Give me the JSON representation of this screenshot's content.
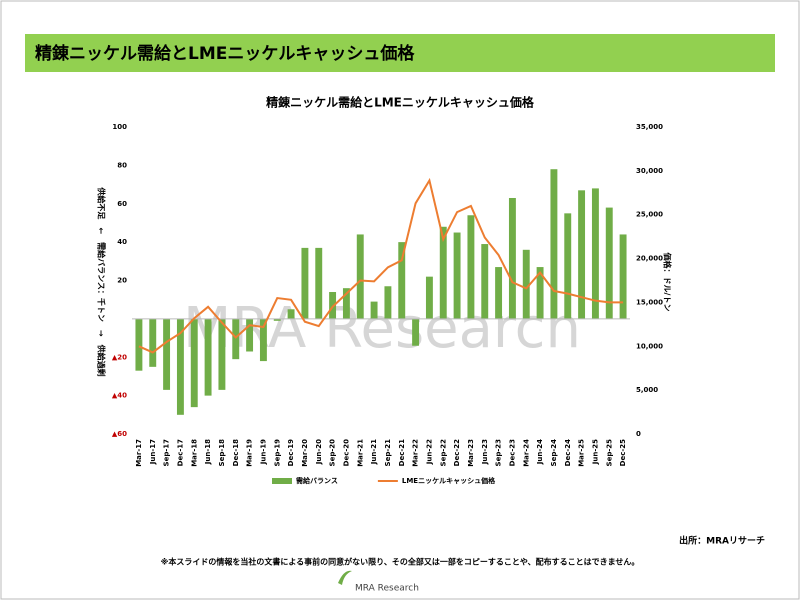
{
  "header_title": "精錬ニッケル需給とLMEニッケルキャッシュ価格",
  "chart_data": {
    "type": "bar-line",
    "title": "精錬ニッケル需給とLMEニッケルキャッシュ価格",
    "y_label": "供給不足　←　需給バランス：千トン　→　供給過剰",
    "y2_label": "価格：ドル/トン",
    "watermark": "MRA Research",
    "categories": [
      "Mar-17",
      "Jun-17",
      "Sep-17",
      "Dec-17",
      "Mar-18",
      "Jun-18",
      "Sep-18",
      "Dec-18",
      "Mar-19",
      "Jun-19",
      "Sep-19",
      "Dec-19",
      "Mar-20",
      "Jun-20",
      "Sep-20",
      "Dec-20",
      "Mar-21",
      "Jun-21",
      "Sep-21",
      "Dec-21",
      "Mar-22",
      "Jun-22",
      "Sep-22",
      "Dec-22",
      "Mar-23",
      "Jun-23",
      "Sep-23",
      "Dec-23",
      "Mar-24",
      "Jun-24",
      "Sep-24",
      "Dec-24",
      "Mar-25",
      "Jun-25",
      "Sep-25",
      "Dec-25"
    ],
    "series": [
      {
        "name": "需給バランス",
        "type": "bar",
        "color": "#70ad47",
        "values": [
          -27,
          -25,
          -37,
          -50,
          -46,
          -40,
          -37,
          -21,
          -17,
          -22,
          -1,
          5,
          37,
          37,
          14,
          16,
          44,
          9,
          17,
          40,
          -14,
          22,
          48,
          45,
          54,
          39,
          27,
          63,
          36,
          27,
          78,
          55,
          67,
          68,
          58,
          44
        ]
      },
      {
        "name": "LMEニッケルキャッシュ価格",
        "type": "line",
        "axis": "y2",
        "color": "#ed7d31",
        "values": [
          10000,
          9300,
          10500,
          11500,
          13200,
          14500,
          12700,
          11000,
          12400,
          12200,
          15500,
          15300,
          12800,
          12300,
          14500,
          16000,
          17500,
          17400,
          19000,
          19800,
          26300,
          28900,
          22200,
          25300,
          26000,
          22400,
          20400,
          17300,
          16600,
          18400,
          16300,
          16000,
          15600,
          15200,
          15000,
          15000
        ]
      }
    ],
    "ylim": [
      -60,
      100
    ],
    "yticks": [
      {
        "value": -60,
        "label": "▲60"
      },
      {
        "value": -40,
        "label": "▲40"
      },
      {
        "value": -20,
        "label": "▲20"
      },
      20,
      40,
      60,
      80,
      100
    ],
    "y2lim": [
      0,
      35000
    ],
    "y2ticks": [
      0,
      {
        "value": 5000,
        "label": "5,000"
      },
      {
        "value": 10000,
        "label": "10,000"
      },
      {
        "value": 15000,
        "label": "15,000"
      },
      {
        "value": 20000,
        "label": "20,000"
      },
      {
        "value": 25000,
        "label": "25,000"
      },
      {
        "value": 30000,
        "label": "30,000"
      },
      {
        "value": 35000,
        "label": "35,000"
      }
    ],
    "negative_tick_color": "#c00000"
  },
  "source": "出所：MRAリサーチ",
  "notice": "※本スライドの情報を当社の文書による事前の同意がない限り、その全部又は一部をコピーすることや、配布することはできません。",
  "logo": "MRA Research"
}
